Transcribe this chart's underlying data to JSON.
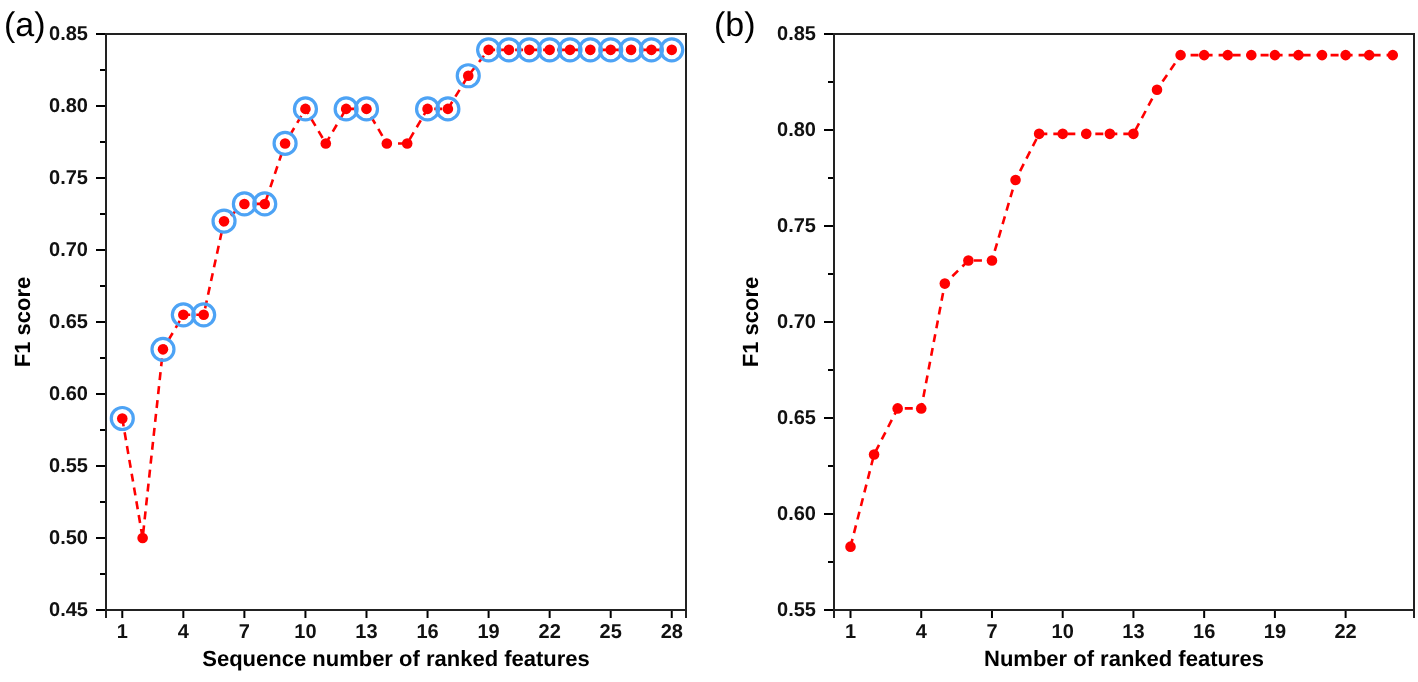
{
  "chart_data": [
    {
      "type": "line",
      "title": "(a)",
      "xlabel": "Sequence number of ranked features",
      "ylabel": "F1 score",
      "x": [
        1,
        2,
        3,
        4,
        5,
        6,
        7,
        8,
        9,
        10,
        11,
        12,
        13,
        14,
        15,
        16,
        17,
        18,
        19,
        20,
        21,
        22,
        23,
        24,
        25,
        26,
        27,
        28
      ],
      "series": [
        {
          "color": "#ff0000",
          "values": [
            0.583,
            0.5,
            0.631,
            0.655,
            0.655,
            0.72,
            0.732,
            0.732,
            0.774,
            0.798,
            0.774,
            0.798,
            0.798,
            0.774,
            0.774,
            0.798,
            0.798,
            0.821,
            0.839,
            0.839,
            0.839,
            0.839,
            0.839,
            0.839,
            0.839,
            0.839,
            0.839,
            0.839
          ]
        },
        {
          "type": "scatter",
          "color": "#4da3f5",
          "values": [
            0.583,
            null,
            0.631,
            0.655,
            0.655,
            0.72,
            0.732,
            0.732,
            0.774,
            0.798,
            null,
            0.798,
            0.798,
            null,
            null,
            0.798,
            0.798,
            0.821,
            0.839,
            0.839,
            0.839,
            0.839,
            0.839,
            0.839,
            0.839,
            0.839,
            0.839,
            0.839
          ]
        }
      ],
      "marker": "circle",
      "line_style": "dashed",
      "xlim": [
        0.2,
        28.7
      ],
      "xticks": [
        1,
        4,
        7,
        10,
        13,
        16,
        19,
        22,
        25,
        28
      ],
      "ylim": [
        0.45,
        0.85
      ],
      "yticks": [
        {
          "value": 0.45,
          "label": "0.45"
        },
        {
          "value": 0.475,
          "label": null
        },
        {
          "value": 0.5,
          "label": "0.50"
        },
        {
          "value": 0.525,
          "label": null
        },
        {
          "value": 0.55,
          "label": "0.55"
        },
        {
          "value": 0.575,
          "label": null
        },
        {
          "value": 0.6,
          "label": "0.60"
        },
        {
          "value": 0.625,
          "label": null
        },
        {
          "value": 0.65,
          "label": "0.65"
        },
        {
          "value": 0.675,
          "label": null
        },
        {
          "value": 0.7,
          "label": "0.70"
        },
        {
          "value": 0.725,
          "label": null
        },
        {
          "value": 0.75,
          "label": "0.75"
        },
        {
          "value": 0.775,
          "label": null
        },
        {
          "value": 0.8,
          "label": "0.80"
        },
        {
          "value": 0.825,
          "label": null
        },
        {
          "value": 0.85,
          "label": "0.85"
        }
      ]
    },
    {
      "type": "line",
      "title": "(b)",
      "xlabel": "Number of ranked features",
      "ylabel": "F1 score",
      "x": [
        1,
        2,
        3,
        4,
        5,
        6,
        7,
        8,
        9,
        10,
        11,
        12,
        13,
        14,
        15,
        16,
        17,
        18,
        19,
        20,
        21,
        22,
        23,
        24
      ],
      "series": [
        {
          "color": "#ff0000",
          "values": [
            0.583,
            0.631,
            0.655,
            0.655,
            0.72,
            0.732,
            0.732,
            0.774,
            0.798,
            0.798,
            0.798,
            0.798,
            0.798,
            0.821,
            0.839,
            0.839,
            0.839,
            0.839,
            0.839,
            0.839,
            0.839,
            0.839,
            0.839,
            0.839
          ]
        }
      ],
      "marker": "circle",
      "line_style": "dashed",
      "xlim": [
        0.3,
        24.9
      ],
      "xticks": [
        1,
        4,
        7,
        10,
        13,
        16,
        19,
        22
      ],
      "ylim": [
        0.55,
        0.85
      ],
      "yticks": [
        {
          "value": 0.55,
          "label": "0.55"
        },
        {
          "value": 0.575,
          "label": null
        },
        {
          "value": 0.6,
          "label": "0.60"
        },
        {
          "value": 0.625,
          "label": null
        },
        {
          "value": 0.65,
          "label": "0.65"
        },
        {
          "value": 0.675,
          "label": null
        },
        {
          "value": 0.7,
          "label": "0.70"
        },
        {
          "value": 0.725,
          "label": null
        },
        {
          "value": 0.75,
          "label": "0.75"
        },
        {
          "value": 0.775,
          "label": null
        },
        {
          "value": 0.8,
          "label": "0.80"
        },
        {
          "value": 0.825,
          "label": null
        },
        {
          "value": 0.85,
          "label": "0.85"
        }
      ]
    }
  ]
}
